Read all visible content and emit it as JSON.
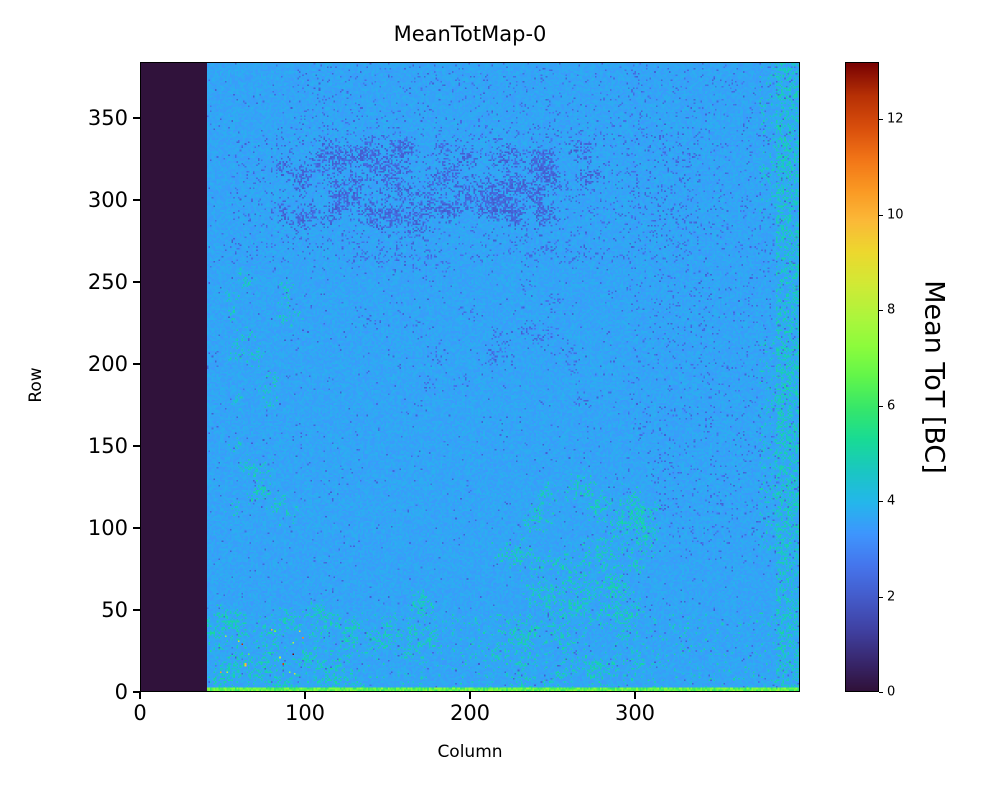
{
  "chart_data": {
    "type": "heatmap",
    "title": "MeanTotMap-0",
    "xlabel": "Column",
    "ylabel": "Row",
    "xlim": [
      0,
      400
    ],
    "ylim": [
      0,
      384
    ],
    "grid": {
      "cols": 400,
      "rows": 384
    },
    "vmin": 0,
    "vmax": 13.2,
    "x_ticks": {
      "values": [
        0,
        100,
        200,
        300
      ],
      "labels": [
        "0",
        "100",
        "200",
        "300"
      ]
    },
    "y_ticks": {
      "values": [
        0,
        50,
        100,
        150,
        200,
        250,
        300,
        350
      ],
      "labels": [
        "0",
        "50",
        "100",
        "150",
        "200",
        "250",
        "300",
        "350"
      ]
    },
    "colorbar": {
      "label": "Mean ToT [BC]",
      "ticks": {
        "values": [
          0,
          2,
          4,
          6,
          8,
          10,
          12
        ],
        "labels": [
          "0",
          "2",
          "4",
          "6",
          "8",
          "10",
          "12"
        ]
      }
    },
    "colormap_name": "turbo",
    "colormap": [
      [
        0.0,
        [
          48,
          18,
          59
        ]
      ],
      [
        0.05,
        [
          57,
          41,
          114
        ]
      ],
      [
        0.1,
        [
          64,
          67,
          166
        ]
      ],
      [
        0.15,
        [
          68,
          92,
          204
        ]
      ],
      [
        0.2,
        [
          69,
          118,
          237
        ]
      ],
      [
        0.25,
        [
          62,
          150,
          254
        ]
      ],
      [
        0.3,
        [
          36,
          183,
          235
        ]
      ],
      [
        0.35,
        [
          26,
          199,
          194
        ]
      ],
      [
        0.4,
        [
          24,
          219,
          149
        ]
      ],
      [
        0.45,
        [
          54,
          231,
          106
        ]
      ],
      [
        0.5,
        [
          97,
          246,
          75
        ]
      ],
      [
        0.55,
        [
          141,
          252,
          60
        ]
      ],
      [
        0.6,
        [
          176,
          245,
          60
        ]
      ],
      [
        0.65,
        [
          210,
          233,
          53
        ]
      ],
      [
        0.7,
        [
          237,
          216,
          46
        ]
      ],
      [
        0.75,
        [
          251,
          185,
          56
        ]
      ],
      [
        0.8,
        [
          250,
          152,
          35
        ]
      ],
      [
        0.85,
        [
          242,
          116,
          23
        ]
      ],
      [
        0.9,
        [
          216,
          78,
          12
        ]
      ],
      [
        0.95,
        [
          183,
          48,
          5
        ]
      ],
      [
        1.0,
        [
          122,
          4,
          3
        ]
      ]
    ],
    "base": {
      "value": 3.6,
      "noise": 0.25
    },
    "regions": [
      {
        "type": "rect",
        "name": "scatter-purple-global",
        "cols": [
          40,
          400
        ],
        "rows": [
          2,
          384
        ],
        "density": 0.012,
        "value": 2.3,
        "jitter": 0.3
      },
      {
        "type": "clusters",
        "name": "purple-band",
        "cols": [
          85,
          275
        ],
        "rows": [
          283,
          332
        ],
        "n": 70,
        "spread": 7,
        "points": 45,
        "value": 2.2,
        "jitter": 0.3
      },
      {
        "type": "rect",
        "name": "purple-band-halo",
        "cols": [
          55,
          340
        ],
        "rows": [
          262,
          345
        ],
        "density": 0.05,
        "value": 2.35,
        "jitter": 0.3
      },
      {
        "type": "clusters",
        "name": "purple-mid",
        "cols": [
          130,
          270
        ],
        "rows": [
          175,
          278
        ],
        "n": 30,
        "spread": 6,
        "points": 14,
        "value": 2.4,
        "jitter": 0.3
      },
      {
        "type": "rect",
        "name": "purple-right",
        "cols": [
          295,
          400
        ],
        "rows": [
          80,
          384
        ],
        "density": 0.035,
        "value": 2.4,
        "jitter": 0.3
      },
      {
        "type": "rect",
        "name": "purple-top",
        "cols": [
          90,
          310
        ],
        "rows": [
          332,
          384
        ],
        "density": 0.04,
        "value": 2.4,
        "jitter": 0.3
      },
      {
        "type": "clusters",
        "name": "teal-bottom-left",
        "cols": [
          42,
          175
        ],
        "rows": [
          3,
          55
        ],
        "n": 45,
        "spread": 7,
        "points": 22,
        "value": 4.8,
        "jitter": 0.4
      },
      {
        "type": "clusters",
        "name": "teal-bottom-mid",
        "cols": [
          218,
          308
        ],
        "rows": [
          5,
          125
        ],
        "n": 60,
        "spread": 8,
        "points": 28,
        "value": 4.8,
        "jitter": 0.4
      },
      {
        "type": "rect",
        "name": "teal-bottom-sparse",
        "cols": [
          40,
          400
        ],
        "rows": [
          2,
          48
        ],
        "density": 0.05,
        "value": 4.7,
        "jitter": 0.4
      },
      {
        "type": "rect",
        "name": "teal-right-edge",
        "cols": [
          386,
          400
        ],
        "rows": [
          0,
          384
        ],
        "density": 0.3,
        "value": 4.7,
        "jitter": 0.4
      },
      {
        "type": "rect",
        "name": "teal-right-mid",
        "cols": [
          376,
          400
        ],
        "rows": [
          85,
          215
        ],
        "density": 0.12,
        "value": 4.7,
        "jitter": 0.4
      },
      {
        "type": "rect",
        "name": "teal-right-top",
        "cols": [
          376,
          400
        ],
        "rows": [
          290,
          384
        ],
        "density": 0.1,
        "value": 4.7,
        "jitter": 0.4
      },
      {
        "type": "clusters",
        "name": "teal-left-column",
        "cols": [
          52,
          98
        ],
        "rows": [
          100,
          265
        ],
        "n": 30,
        "spread": 5,
        "points": 12,
        "value": 4.7,
        "jitter": 0.4
      },
      {
        "type": "rect",
        "name": "hot-specks",
        "cols": [
          44,
          100
        ],
        "rows": [
          10,
          40
        ],
        "density": 0.015,
        "value": 10,
        "jitter": 4
      },
      {
        "type": "rect",
        "name": "bottom-row-line",
        "cols": [
          40,
          400
        ],
        "rows": [
          0,
          2
        ],
        "density": 1,
        "value": 6.6,
        "jitter": 0.8
      },
      {
        "type": "rect",
        "name": "dead-column-band",
        "cols": [
          0,
          40
        ],
        "rows": [
          0,
          384
        ],
        "density": 1,
        "value": 0,
        "jitter": 0
      }
    ]
  }
}
